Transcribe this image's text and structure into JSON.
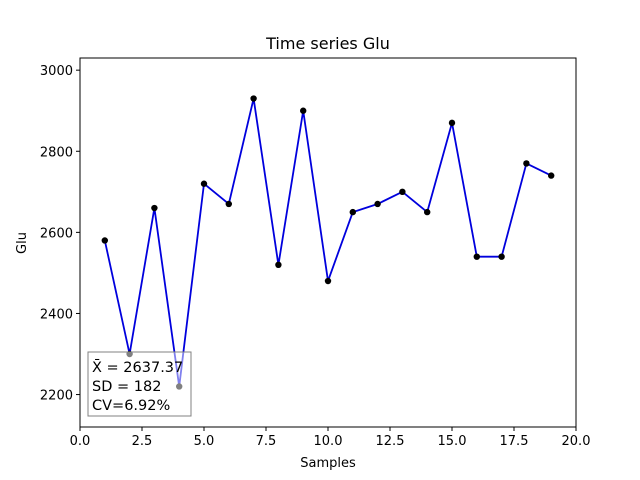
{
  "chart_data": {
    "type": "line",
    "title": "Time series Glu",
    "xlabel": "Samples",
    "ylabel": "Glu",
    "xlim": [
      0,
      20
    ],
    "ylim": [
      2120,
      3030
    ],
    "x_ticks": [
      0,
      2.5,
      5,
      7.5,
      10,
      12.5,
      15,
      17.5,
      20
    ],
    "x_tick_labels": [
      "0.0",
      "2.5",
      "5.0",
      "7.5",
      "10.0",
      "12.5",
      "15.0",
      "17.5",
      "20.0"
    ],
    "y_ticks": [
      2200,
      2400,
      2600,
      2800,
      3000
    ],
    "y_tick_labels": [
      "2200",
      "2400",
      "2600",
      "2800",
      "3000"
    ],
    "grid": false,
    "series": [
      {
        "color": "#0000dd",
        "marker_color": "#000000",
        "x": [
          1,
          2,
          3,
          4,
          5,
          6,
          7,
          8,
          9,
          10,
          11,
          12,
          13,
          14,
          15,
          16,
          17,
          18,
          19
        ],
        "values": [
          2580,
          2300,
          2660,
          2220,
          2720,
          2670,
          2930,
          2520,
          2900,
          2480,
          2650,
          2670,
          2700,
          2650,
          2870,
          2540,
          2540,
          2770,
          2740
        ]
      }
    ],
    "stats": {
      "mean_label": "X̄ = 2637.37",
      "sd_label": "SD = 182",
      "cv_label": "CV=6.92%"
    },
    "stats_box_placement": "bottom-left"
  }
}
